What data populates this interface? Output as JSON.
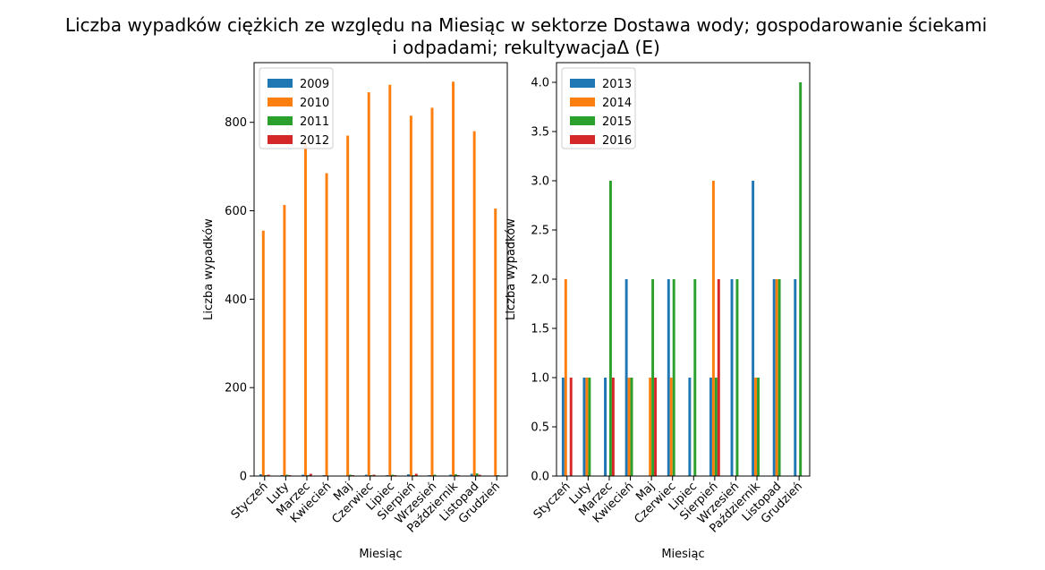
{
  "title_lines": [
    "Liczba wypadków ciężkich ze względu na Miesiąc w sektorze Dostawa wody; gospodarowanie ściekami",
    "i odpadami;  rekultywacjaΔ  (E)"
  ],
  "colors": [
    "#1f77b4",
    "#ff7f0e",
    "#2ca02c",
    "#d62728"
  ],
  "chart_data": [
    {
      "type": "bar",
      "xlabel": "Miesiąc",
      "ylabel": "Liczba wypadków",
      "ylim": [
        0,
        935
      ],
      "yticks": [
        0,
        200,
        400,
        600,
        800
      ],
      "legend_position": "top-left",
      "grid": false,
      "categories": [
        "Styczeń",
        "Luty",
        "Marzec",
        "Kwiecień",
        "Maj",
        "Czerwiec",
        "Lipiec",
        "Sierpień",
        "Wrzesień",
        "Październik",
        "Listopad",
        "Grudzień"
      ],
      "series": [
        {
          "name": "2009",
          "values": [
            4,
            2,
            3,
            2,
            1,
            3,
            2,
            4,
            2,
            3,
            5,
            1
          ]
        },
        {
          "name": "2010",
          "values": [
            555,
            613,
            755,
            685,
            770,
            868,
            885,
            815,
            833,
            892,
            780,
            605
          ]
        },
        {
          "name": "2011",
          "values": [
            2,
            3,
            2,
            1,
            3,
            2,
            3,
            2,
            3,
            4,
            6,
            2
          ]
        },
        {
          "name": "2012",
          "values": [
            3,
            2,
            5,
            1,
            2,
            3,
            2,
            5,
            1,
            2,
            3,
            1
          ]
        }
      ]
    },
    {
      "type": "bar",
      "xlabel": "Miesiąc",
      "ylabel": "Liczba wypadków",
      "ylim": [
        0,
        4.2
      ],
      "yticks": [
        0.0,
        0.5,
        1.0,
        1.5,
        2.0,
        2.5,
        3.0,
        3.5,
        4.0
      ],
      "legend_position": "top-left",
      "grid": false,
      "categories": [
        "Styczeń",
        "Luty",
        "Marzec",
        "Kwiecień",
        "Maj",
        "Czerwiec",
        "Lipiec",
        "Sierpień",
        "Wrzesień",
        "Październik",
        "Listopad",
        "Grudzień"
      ],
      "series": [
        {
          "name": "2013",
          "values": [
            1,
            1,
            1,
            2,
            0,
            2,
            1,
            1,
            2,
            3,
            2,
            2
          ]
        },
        {
          "name": "2014",
          "values": [
            2,
            1,
            0,
            1,
            1,
            1,
            0,
            3,
            0,
            1,
            2,
            0
          ]
        },
        {
          "name": "2015",
          "values": [
            0,
            1,
            3,
            1,
            2,
            2,
            2,
            1,
            2,
            1,
            2,
            4
          ]
        },
        {
          "name": "2016",
          "values": [
            1,
            0,
            1,
            0,
            1,
            0,
            0,
            2,
            0,
            0,
            0,
            0
          ]
        }
      ]
    }
  ]
}
